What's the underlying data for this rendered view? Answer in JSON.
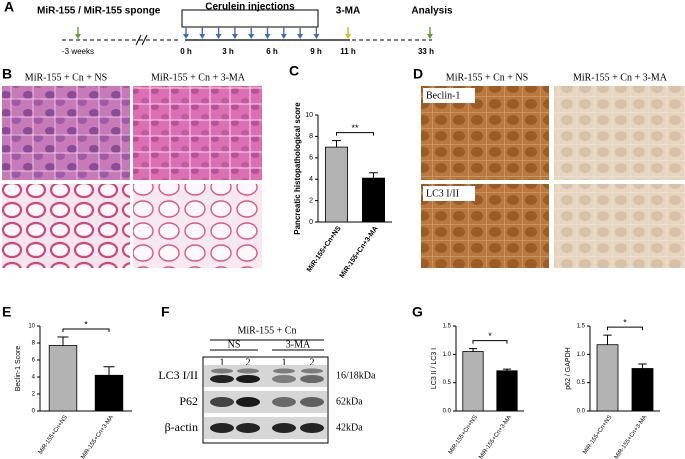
{
  "panels": [
    "A",
    "B",
    "C",
    "D",
    "E",
    "F",
    "G"
  ],
  "timeline": {
    "start": "MiR-155 / MiR-155 sponge",
    "start_time": "-3 weeks",
    "injections": "Cerulein injections",
    "times": [
      "0 h",
      "3 h",
      "6 h",
      "9 h"
    ],
    "inhibitor": "3-MA",
    "inhibitor_time": "11 h",
    "end": "Analysis",
    "end_time": "33 h"
  },
  "histology_b": {
    "columns": [
      "MiR-155 + Cn + NS",
      "MiR-155 + Cn + 3-MA"
    ]
  },
  "histology_d": {
    "columns": [
      "MiR-155 + Cn + NS",
      "MiR-155 + Cn + 3-MA"
    ],
    "rows": [
      "Beclin-1",
      "LC3 I/II"
    ]
  },
  "blot": {
    "group": "MiR-155 + Cn",
    "conditions": [
      "NS",
      "3-MA"
    ],
    "lanes": [
      "1",
      "2",
      "1",
      "2"
    ],
    "proteins": [
      "LC3 I/II",
      "P62",
      "β-actin"
    ],
    "sizes": [
      "16/18kDa",
      "62kDa",
      "42kDa"
    ]
  },
  "chart_data": [
    {
      "type": "bar",
      "ylabel": "Pancreatic histopathological score",
      "categories": [
        "MiR-155+Cn+NS",
        "MiR-155+Cn+3-MA"
      ],
      "values": [
        7.0,
        4.1
      ],
      "errors": [
        0.6,
        0.5
      ],
      "colors": [
        "#b3b3b3",
        "#000000"
      ],
      "ylim": [
        0,
        10
      ],
      "yticks": [
        0,
        2,
        4,
        6,
        8,
        10
      ],
      "significance": "**"
    },
    {
      "type": "bar",
      "ylabel": "Beclin-1 Score",
      "categories": [
        "MiR-155+Cn+NS",
        "MiR-155+Cn+3-MA"
      ],
      "values": [
        7.7,
        4.2
      ],
      "errors": [
        1.0,
        1.0
      ],
      "colors": [
        "#b3b3b3",
        "#000000"
      ],
      "ylim": [
        0,
        10
      ],
      "yticks": [
        0,
        2,
        4,
        6,
        8,
        10
      ],
      "significance": "*"
    },
    {
      "type": "bar",
      "ylabel": "LC3 II / LC3 I",
      "categories": [
        "MiR-155+Cn+NS",
        "MiR-155+Cn+3-MA"
      ],
      "values": [
        1.05,
        0.71
      ],
      "errors": [
        0.05,
        0.03
      ],
      "colors": [
        "#b3b3b3",
        "#000000"
      ],
      "ylim": [
        0,
        1.5
      ],
      "yticks": [
        {
          "value": 0,
          "label": "0.0"
        },
        0.5,
        {
          "value": 1,
          "label": "1.0"
        },
        1.5
      ],
      "significance": "*"
    },
    {
      "type": "bar",
      "ylabel": "p62 / GAPDH",
      "categories": [
        "MiR-155+Cn+NS",
        "MiR-155+Cn+3-MA"
      ],
      "values": [
        1.17,
        0.75
      ],
      "errors": [
        0.17,
        0.08
      ],
      "colors": [
        "#b3b3b3",
        "#000000"
      ],
      "ylim": [
        0,
        1.5
      ],
      "yticks": [
        {
          "value": 0,
          "label": "0.0"
        },
        0.5,
        {
          "value": 1,
          "label": "1.0"
        },
        1.5
      ],
      "significance": "*"
    }
  ]
}
